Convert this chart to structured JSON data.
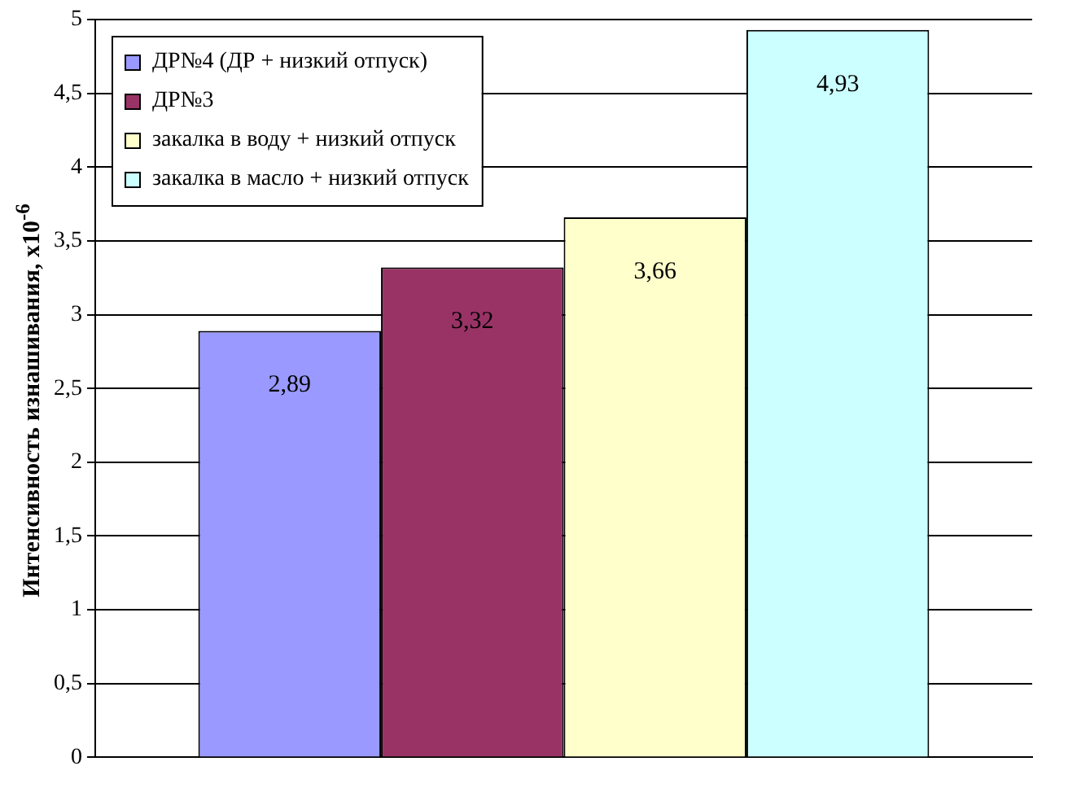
{
  "chart_data": {
    "type": "bar",
    "ylabel": "Интенсивность изнашивания, x10$^{-6}$",
    "categories": [
      null
    ],
    "series": [
      {
        "name": "ДР№4 (ДР + низкий отпуск)",
        "color": "#9999ff",
        "values": [
          2.89
        ],
        "value_labels": [
          "2,89"
        ]
      },
      {
        "name": "ДР№3",
        "color": "#993366",
        "values": [
          3.32
        ],
        "value_labels": [
          "3,32"
        ]
      },
      {
        "name": "закалка в воду + низкий отпуск",
        "color": "#ffffcc",
        "values": [
          3.66
        ],
        "value_labels": [
          "3,66"
        ]
      },
      {
        "name": "закалка в масло + низкий отпуск",
        "color": "#ccffff",
        "values": [
          4.93
        ],
        "value_labels": [
          "4,93"
        ]
      }
    ],
    "ylim": [
      0,
      5
    ],
    "yticks": [
      0,
      {
        "value": 0.5,
        "label": "0,5"
      },
      1,
      {
        "value": 1.5,
        "label": "1,5"
      },
      2,
      {
        "value": 2.5,
        "label": "2,5"
      },
      3,
      {
        "value": 3.5,
        "label": "3,5"
      },
      4,
      {
        "value": 4.5,
        "label": "4,5"
      },
      5
    ],
    "grid": "y",
    "legend": "top left"
  }
}
